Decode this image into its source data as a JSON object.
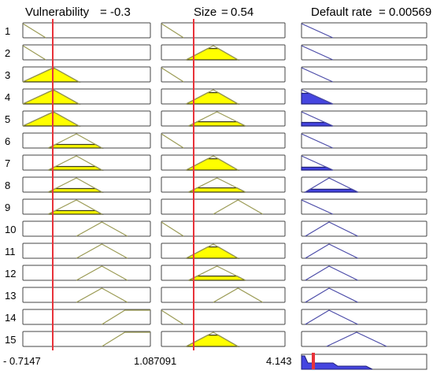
{
  "headers": [
    {
      "label": "Vulnerability",
      "value": "-0.3"
    },
    {
      "label": "Size",
      "value": "0.54"
    },
    {
      "label": "Default rate",
      "value": "0.00569"
    }
  ],
  "bottom": {
    "vuln_min": "- 0.7147",
    "vuln_max": "1.087091",
    "size_max": "4.143"
  },
  "colors": {
    "box_border": "#444444",
    "input_line": "#9b9b55",
    "fill_yellow": "#ffff00",
    "fill_edge": "#3a3a1a",
    "output_line": "#4b4ba8",
    "output_fill": "#4545e0",
    "cursor": "#e8323a"
  },
  "rules": [
    {
      "number": "1",
      "vulnerability": {
        "mf": "low",
        "fill": 0
      },
      "size": {
        "mf": "low",
        "fill": 0
      },
      "default": {
        "mf": "low",
        "fill": 0
      }
    },
    {
      "number": "2",
      "vulnerability": {
        "mf": "low",
        "fill": 0
      },
      "size": {
        "mf": "mid",
        "fill": 0.8
      },
      "default": {
        "mf": "low",
        "fill": 0
      }
    },
    {
      "number": "3",
      "vulnerability": {
        "mf": "low_mid",
        "fill": 0.95
      },
      "size": {
        "mf": "low",
        "fill": 0
      },
      "default": {
        "mf": "low",
        "fill": 0
      }
    },
    {
      "number": "4",
      "vulnerability": {
        "mf": "low_mid",
        "fill": 0.95
      },
      "size": {
        "mf": "mid",
        "fill": 0.8
      },
      "default": {
        "mf": "low",
        "fill": 0.75
      }
    },
    {
      "number": "5",
      "vulnerability": {
        "mf": "low_mid",
        "fill": 0.95
      },
      "size": {
        "mf": "mid_high",
        "fill": 0.3
      },
      "default": {
        "mf": "low",
        "fill": 0.25
      }
    },
    {
      "number": "6",
      "vulnerability": {
        "mf": "mid",
        "fill": 0.25
      },
      "size": {
        "mf": "low",
        "fill": 0
      },
      "default": {
        "mf": "low",
        "fill": 0
      }
    },
    {
      "number": "7",
      "vulnerability": {
        "mf": "mid",
        "fill": 0.25
      },
      "size": {
        "mf": "mid",
        "fill": 0.8
      },
      "default": {
        "mf": "low",
        "fill": 0.2
      }
    },
    {
      "number": "8",
      "vulnerability": {
        "mf": "mid",
        "fill": 0.25
      },
      "size": {
        "mf": "mid_high",
        "fill": 0.3
      },
      "default": {
        "mf": "mid",
        "fill": 0.2
      }
    },
    {
      "number": "9",
      "vulnerability": {
        "mf": "mid",
        "fill": 0.25
      },
      "size": {
        "mf": "high",
        "fill": 0
      },
      "default": {
        "mf": "low",
        "fill": 0
      }
    },
    {
      "number": "10",
      "vulnerability": {
        "mf": "high",
        "fill": 0
      },
      "size": {
        "mf": "low",
        "fill": 0
      },
      "default": {
        "mf": "mid",
        "fill": 0
      }
    },
    {
      "number": "11",
      "vulnerability": {
        "mf": "high",
        "fill": 0
      },
      "size": {
        "mf": "mid",
        "fill": 0.8
      },
      "default": {
        "mf": "mid",
        "fill": 0
      }
    },
    {
      "number": "12",
      "vulnerability": {
        "mf": "high",
        "fill": 0
      },
      "size": {
        "mf": "mid_high",
        "fill": 0.3
      },
      "default": {
        "mf": "mid",
        "fill": 0
      }
    },
    {
      "number": "13",
      "vulnerability": {
        "mf": "high",
        "fill": 0
      },
      "size": {
        "mf": "high",
        "fill": 0
      },
      "default": {
        "mf": "mid",
        "fill": 0
      }
    },
    {
      "number": "14",
      "vulnerability": {
        "mf": "top",
        "fill": 0
      },
      "size": {
        "mf": "low",
        "fill": 0
      },
      "default": {
        "mf": "mid",
        "fill": 0
      }
    },
    {
      "number": "15",
      "vulnerability": {
        "mf": "top",
        "fill": 0
      },
      "size": {
        "mf": "mid",
        "fill": 0.8
      },
      "default": {
        "mf": "high",
        "fill": 0
      }
    }
  ]
}
